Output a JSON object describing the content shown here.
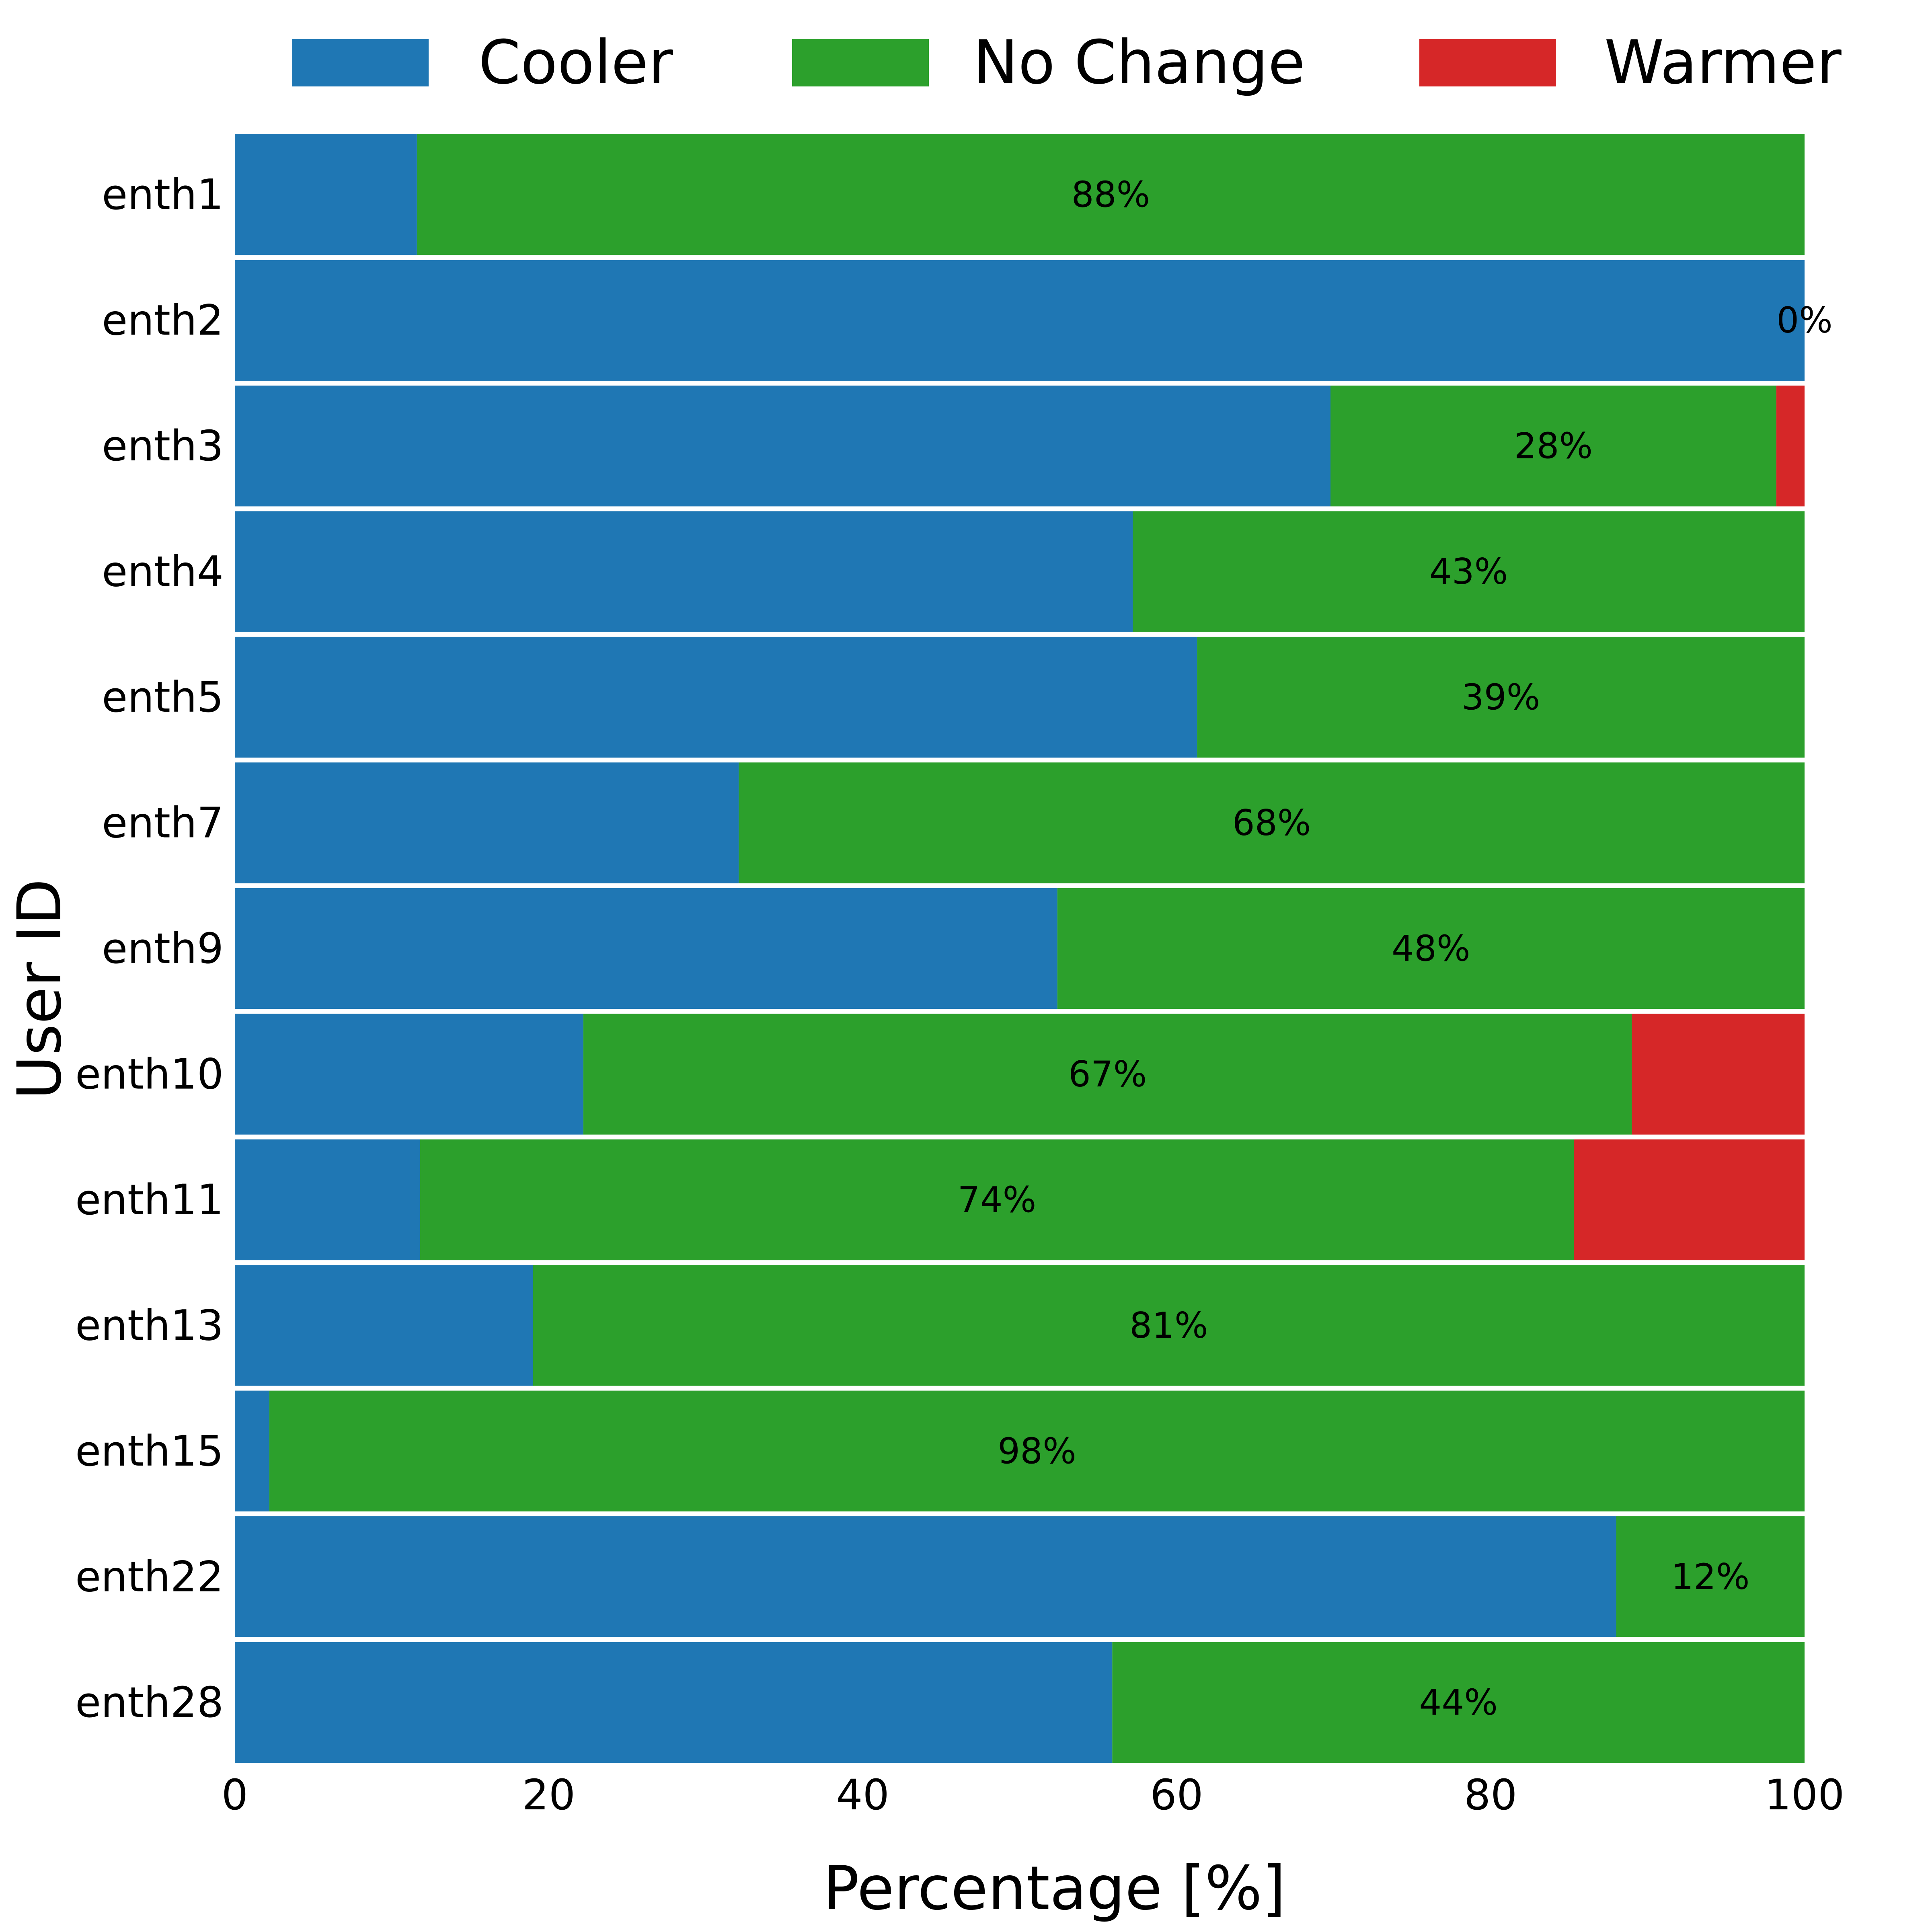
{
  "chart_data": {
    "type": "bar",
    "orientation": "horizontal",
    "stacked": true,
    "xlabel": "Percentage [%]",
    "ylabel": "User ID",
    "xlim": [
      0,
      100
    ],
    "xticks": [
      0,
      20,
      40,
      60,
      80,
      100
    ],
    "grid": false,
    "legend_position": "top",
    "categories": [
      "enth1",
      "enth2",
      "enth3",
      "enth4",
      "enth5",
      "enth7",
      "enth9",
      "enth10",
      "enth11",
      "enth13",
      "enth15",
      "enth22",
      "enth28"
    ],
    "series": [
      {
        "name": "Cooler",
        "color": "#1f77b4",
        "values": [
          11.6,
          100,
          69.8,
          57.2,
          61.3,
          32.1,
          52.4,
          22.2,
          11.8,
          19.0,
          2.2,
          88.0,
          55.9
        ]
      },
      {
        "name": "No Change",
        "color": "#2ca02c",
        "values": [
          88.4,
          0,
          28.4,
          42.8,
          38.7,
          67.9,
          47.6,
          66.8,
          73.5,
          81.0,
          97.8,
          12.0,
          44.1
        ]
      },
      {
        "name": "Warmer",
        "color": "#d62728",
        "values": [
          0,
          0,
          1.8,
          0,
          0,
          0,
          0,
          11.0,
          14.7,
          0,
          0,
          0,
          0
        ]
      }
    ],
    "data_labels": [
      "88%",
      "0%",
      "28%",
      "43%",
      "39%",
      "68%",
      "48%",
      "67%",
      "74%",
      "81%",
      "98%",
      "12%",
      "44%"
    ]
  }
}
